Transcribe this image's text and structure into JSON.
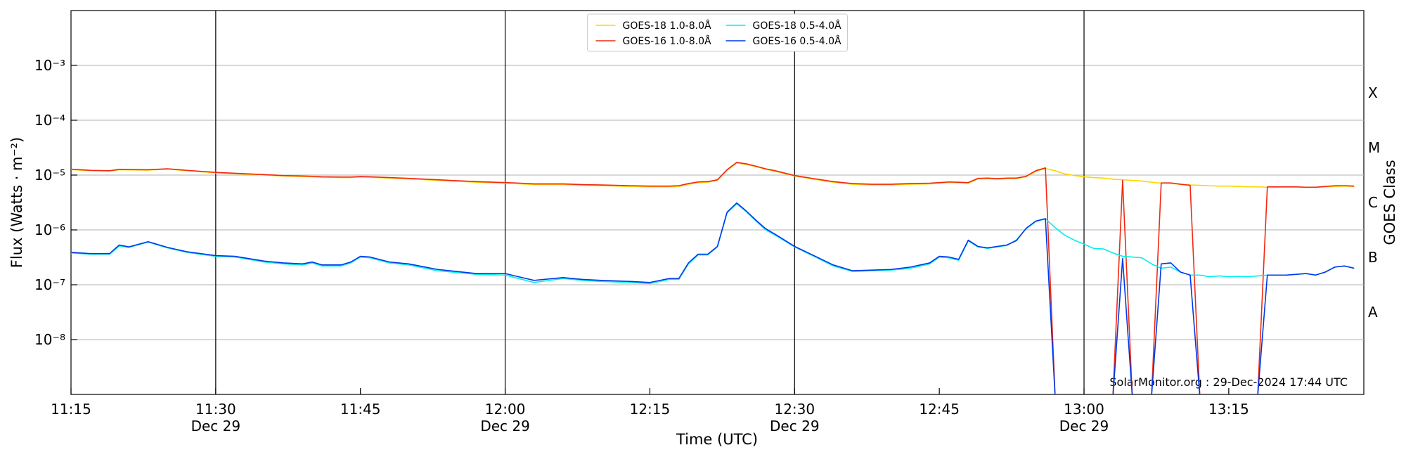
{
  "chart_data": {
    "type": "line",
    "xlabel": "Time (UTC)",
    "ylabel": "Flux (Watts · m⁻²)",
    "y2label": "GOES Class",
    "annotation": "SolarMonitor.org : 29-Dec-2024 17:44 UTC",
    "log_y": true,
    "grid": true,
    "legend": "upper center",
    "xlim": [
      "11:15",
      "13:29"
    ],
    "xticks": [
      "11:15",
      {
        "value": "11:30",
        "label": "11:30\nDec 29"
      },
      "11:45",
      {
        "value": "12:00",
        "label": "12:00\nDec 29"
      },
      "12:15",
      {
        "value": "12:30",
        "label": "12:30\nDec 29"
      },
      "12:45",
      {
        "value": "13:00",
        "label": "13:00\nDec 29"
      },
      "13:15"
    ],
    "vlines": [
      "11:30",
      "12:00",
      "12:30",
      "13:00"
    ],
    "ylim": [
      1e-09,
      0.01
    ],
    "yticks": [
      {
        "value": 1e-08,
        "label": "10⁻⁸"
      },
      {
        "value": 1e-07,
        "label": "10⁻⁷"
      },
      {
        "value": 1e-06,
        "label": "10⁻⁶"
      },
      {
        "value": 1e-05,
        "label": "10⁻⁵"
      },
      {
        "value": 0.0001,
        "label": "10⁻⁴"
      },
      {
        "value": 0.001,
        "label": "10⁻³"
      }
    ],
    "y2lim": [
      1e-09,
      0.01
    ],
    "y2ticks": [
      {
        "value": 3.16e-08,
        "label": "A"
      },
      {
        "value": 3.16e-07,
        "label": "B"
      },
      {
        "value": 3.16e-06,
        "label": "C"
      },
      {
        "value": 3.16e-05,
        "label": "M"
      },
      {
        "value": 0.000316,
        "label": "X"
      }
    ],
    "x": [
      "11:15",
      "11:17",
      "11:19",
      "11:20",
      "11:21",
      "11:23",
      "11:25",
      "11:27",
      "11:30",
      "11:32",
      "11:35",
      "11:37",
      "11:39",
      "11:40",
      "11:41",
      "11:43",
      "11:44",
      "11:45",
      "11:46",
      "11:48",
      "11:50",
      "11:53",
      "11:57",
      "12:00",
      "12:01",
      "12:03",
      "12:06",
      "12:08",
      "12:10",
      "12:13",
      "12:15",
      "12:17",
      "12:18",
      "12:19",
      "12:20",
      "12:21",
      "12:22",
      "12:23",
      "12:24",
      "12:25",
      "12:26",
      "12:27",
      "12:28",
      "12:30",
      "12:32",
      "12:34",
      "12:36",
      "12:38",
      "12:40",
      "12:42",
      "12:44",
      "12:45",
      "12:46",
      "12:47",
      "12:48",
      "12:49",
      "12:50",
      "12:51",
      "12:52",
      "12:53",
      "12:54",
      "12:55",
      "12:56",
      "12:57",
      "12:58",
      "12:59",
      "13:00",
      "13:01",
      "13:02",
      "13:03",
      "13:04",
      "13:05",
      "13:06",
      "13:07",
      "13:08",
      "13:09",
      "13:10",
      "13:11",
      "13:12",
      "13:13",
      "13:14",
      "13:15",
      "13:16",
      "13:17",
      "13:18",
      "13:19",
      "13:20",
      "13:21",
      "13:22",
      "13:23",
      "13:24",
      "13:25",
      "13:26",
      "13:27",
      "13:28"
    ],
    "series": [
      {
        "name": "GOES-18 1.0-8.0Å",
        "color": "#ffd500",
        "values": [
          1.26e-05,
          1.2e-05,
          1.18e-05,
          1.25e-05,
          1.24e-05,
          1.23e-05,
          1.28e-05,
          1.2e-05,
          1.1e-05,
          1.06e-05,
          1e-05,
          9.6e-06,
          9.4e-06,
          9.3e-06,
          9.1e-06,
          9e-06,
          9e-06,
          9.2e-06,
          9.1e-06,
          8.8e-06,
          8.5e-06,
          8e-06,
          7.4e-06,
          7.1e-06,
          7e-06,
          6.7e-06,
          6.7e-06,
          6.5e-06,
          6.4e-06,
          6.2e-06,
          6.1e-06,
          6.1e-06,
          6.2e-06,
          6.8e-06,
          7.3e-06,
          7.4e-06,
          8e-06,
          1.22e-05,
          1.66e-05,
          1.56e-05,
          1.42e-05,
          1.27e-05,
          1.17e-05,
          9.6e-06,
          8.4e-06,
          7.4e-06,
          6.8e-06,
          6.6e-06,
          6.6e-06,
          6.8e-06,
          6.9e-06,
          7.1e-06,
          7.3e-06,
          7.2e-06,
          7.1e-06,
          8.5e-06,
          8.6e-06,
          8.4e-06,
          8.6e-06,
          8.6e-06,
          9.3e-06,
          1.17e-05,
          1.32e-05,
          1.2e-05,
          1.05e-05,
          9.8e-06,
          9.3e-06,
          9e-06,
          8.8e-06,
          8.4e-06,
          8.2e-06,
          8e-06,
          7.8e-06,
          7.4e-06,
          7.1e-06,
          7e-06,
          6.8e-06,
          6.6e-06,
          6.5e-06,
          6.4e-06,
          6.3e-06,
          6.3e-06,
          6.2e-06,
          6.1e-06,
          6.1e-06,
          6e-06,
          6e-06,
          6e-06,
          6e-06,
          6e-06,
          6e-06,
          6.1e-06,
          6.2e-06,
          6.3e-06,
          6.2e-06
        ]
      },
      {
        "name": "GOES-16 1.0-8.0Å",
        "color": "#f02a10",
        "values": [
          1.28e-05,
          1.22e-05,
          1.2e-05,
          1.27e-05,
          1.26e-05,
          1.25e-05,
          1.3e-05,
          1.22e-05,
          1.12e-05,
          1.08e-05,
          1.02e-05,
          9.8e-06,
          9.6e-06,
          9.5e-06,
          9.3e-06,
          9.2e-06,
          9.2e-06,
          9.4e-06,
          9.3e-06,
          9e-06,
          8.7e-06,
          8.2e-06,
          7.6e-06,
          7.3e-06,
          7.2e-06,
          6.9e-06,
          6.9e-06,
          6.7e-06,
          6.6e-06,
          6.4e-06,
          6.3e-06,
          6.3e-06,
          6.4e-06,
          7e-06,
          7.5e-06,
          7.6e-06,
          8.2e-06,
          1.25e-05,
          1.7e-05,
          1.6e-05,
          1.45e-05,
          1.3e-05,
          1.2e-05,
          9.8e-06,
          8.6e-06,
          7.6e-06,
          7e-06,
          6.8e-06,
          6.8e-06,
          7e-06,
          7.1e-06,
          7.3e-06,
          7.5e-06,
          7.4e-06,
          7.3e-06,
          8.7e-06,
          8.8e-06,
          8.6e-06,
          8.8e-06,
          8.8e-06,
          9.5e-06,
          1.2e-05,
          1.35e-05,
          0,
          0,
          0,
          0,
          0,
          0,
          0,
          8e-06,
          0,
          0,
          0,
          7.2e-06,
          7.2e-06,
          6.8e-06,
          6.5e-06,
          0,
          0,
          0,
          0,
          0,
          0,
          0,
          6.1e-06,
          6.1e-06,
          6.1e-06,
          6.1e-06,
          6e-06,
          6e-06,
          6.2e-06,
          6.4e-06,
          6.4e-06,
          6.3e-06
        ]
      },
      {
        "name": "GOES-18 0.5-4.0Å",
        "color": "#00f0f0",
        "values": [
          3.8e-07,
          3.6e-07,
          3.6e-07,
          5.1e-07,
          4.8e-07,
          6e-07,
          4.7e-07,
          3.9e-07,
          3.3e-07,
          3.2e-07,
          2.6e-07,
          2.4e-07,
          2.3e-07,
          2.5e-07,
          2.2e-07,
          2.2e-07,
          2.5e-07,
          3.2e-07,
          3.1e-07,
          2.5e-07,
          2.3e-07,
          1.8e-07,
          1.55e-07,
          1.5e-07,
          1.35e-07,
          1.1e-07,
          1.3e-07,
          1.2e-07,
          1.15e-07,
          1.1e-07,
          1.05e-07,
          1.25e-07,
          1.25e-07,
          2.4e-07,
          3.5e-07,
          3.5e-07,
          4.9e-07,
          2.05e-06,
          3e-06,
          2.15e-06,
          1.45e-06,
          1e-06,
          8e-07,
          4.9e-07,
          3.3e-07,
          2.2e-07,
          1.75e-07,
          1.8e-07,
          1.85e-07,
          2e-07,
          2.4e-07,
          3.2e-07,
          3.1e-07,
          2.8e-07,
          6.3e-07,
          4.9e-07,
          4.6e-07,
          4.9e-07,
          5.2e-07,
          6.6e-07,
          1.05e-06,
          1.42e-06,
          1.6e-06,
          1.1e-06,
          8e-07,
          6.5e-07,
          5.5e-07,
          4.6e-07,
          4.5e-07,
          3.8e-07,
          3.3e-07,
          3.2e-07,
          3.1e-07,
          2.4e-07,
          2e-07,
          2.1e-07,
          1.7e-07,
          1.5e-07,
          1.5e-07,
          1.4e-07,
          1.45e-07,
          1.4e-07,
          1.42e-07,
          1.4e-07,
          1.45e-07,
          1.5e-07,
          1.5e-07,
          1.5e-07,
          1.55e-07,
          1.6e-07,
          1.5e-07,
          1.7e-07,
          2.1e-07,
          2.2e-07,
          2e-07
        ]
      },
      {
        "name": "GOES-16 0.5-4.0Å",
        "color": "#0038e8",
        "values": [
          3.9e-07,
          3.7e-07,
          3.7e-07,
          5.3e-07,
          4.9e-07,
          6.1e-07,
          4.8e-07,
          4e-07,
          3.4e-07,
          3.3e-07,
          2.7e-07,
          2.5e-07,
          2.4e-07,
          2.6e-07,
          2.3e-07,
          2.3e-07,
          2.6e-07,
          3.3e-07,
          3.2e-07,
          2.6e-07,
          2.4e-07,
          1.9e-07,
          1.6e-07,
          1.6e-07,
          1.45e-07,
          1.2e-07,
          1.35e-07,
          1.25e-07,
          1.2e-07,
          1.15e-07,
          1.1e-07,
          1.3e-07,
          1.3e-07,
          2.5e-07,
          3.6e-07,
          3.6e-07,
          5e-07,
          2.1e-06,
          3.1e-06,
          2.2e-06,
          1.5e-06,
          1.05e-06,
          8.3e-07,
          5e-07,
          3.4e-07,
          2.3e-07,
          1.8e-07,
          1.85e-07,
          1.9e-07,
          2.1e-07,
          2.5e-07,
          3.3e-07,
          3.2e-07,
          2.9e-07,
          6.5e-07,
          5e-07,
          4.7e-07,
          5e-07,
          5.3e-07,
          6.4e-07,
          1.07e-06,
          1.45e-06,
          1.6e-06,
          0,
          0,
          0,
          0,
          0,
          0,
          0,
          3e-07,
          0,
          0,
          0,
          2.4e-07,
          2.5e-07,
          1.7e-07,
          1.5e-07,
          0,
          0,
          0,
          0,
          0,
          0,
          0,
          1.5e-07,
          1.5e-07,
          1.5e-07,
          1.55e-07,
          1.6e-07,
          1.5e-07,
          1.7e-07,
          2.1e-07,
          2.2e-07,
          2e-07
        ]
      }
    ]
  }
}
